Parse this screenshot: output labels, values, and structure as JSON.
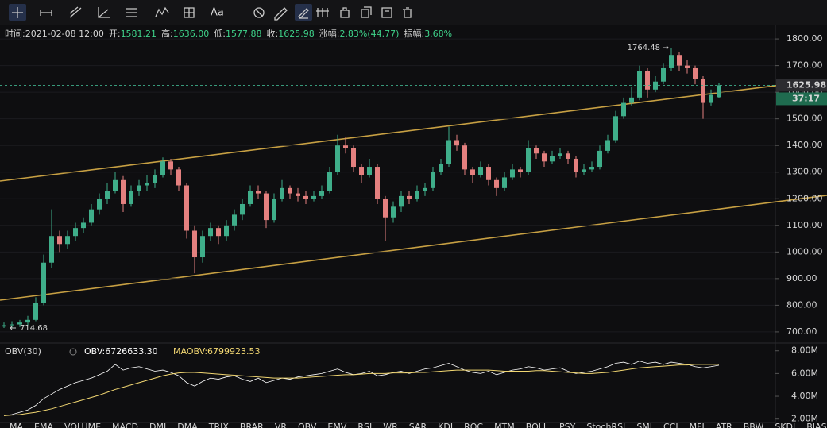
{
  "toolbar": {
    "text_tool": "Aa"
  },
  "info": [
    {
      "label": "时间:",
      "value": "2021-02-08 12:00"
    },
    {
      "label": "开:",
      "value": "1581.21"
    },
    {
      "label": "高:",
      "value": "1636.00"
    },
    {
      "label": "低:",
      "value": "1577.88"
    },
    {
      "label": "收:",
      "value": "1625.98"
    },
    {
      "label": "涨幅:",
      "value": "2.83%(44.77)"
    },
    {
      "label": "振幅:",
      "value": "3.68%"
    }
  ],
  "chart_data": [
    {
      "type": "candlestick",
      "up_color": "#3fae8a",
      "down_color": "#e4807f",
      "candles": [
        [
          720,
          735,
          714.68,
          725
        ],
        [
          725,
          740,
          715,
          728
        ],
        [
          728,
          745,
          718,
          735
        ],
        [
          735,
          760,
          725,
          745
        ],
        [
          745,
          830,
          740,
          810
        ],
        [
          810,
          990,
          800,
          960
        ],
        [
          960,
          1160,
          940,
          1060
        ],
        [
          1060,
          1080,
          1000,
          1030
        ],
        [
          1030,
          1080,
          1010,
          1060
        ],
        [
          1060,
          1110,
          1040,
          1090
        ],
        [
          1090,
          1130,
          1070,
          1110
        ],
        [
          1110,
          1180,
          1100,
          1160
        ],
        [
          1160,
          1220,
          1140,
          1200
        ],
        [
          1200,
          1260,
          1180,
          1230
        ],
        [
          1230,
          1300,
          1220,
          1270
        ],
        [
          1270,
          1285,
          1150,
          1180
        ],
        [
          1180,
          1250,
          1170,
          1230
        ],
        [
          1230,
          1270,
          1210,
          1250
        ],
        [
          1250,
          1290,
          1230,
          1260
        ],
        [
          1260,
          1310,
          1240,
          1290
        ],
        [
          1290,
          1355,
          1280,
          1340
        ],
        [
          1340,
          1350,
          1290,
          1310
        ],
        [
          1310,
          1320,
          1230,
          1250
        ],
        [
          1250,
          1260,
          1050,
          1080
        ],
        [
          1080,
          1100,
          920,
          980
        ],
        [
          980,
          1080,
          960,
          1060
        ],
        [
          1060,
          1110,
          1040,
          1090
        ],
        [
          1090,
          1100,
          1030,
          1060
        ],
        [
          1060,
          1120,
          1040,
          1100
        ],
        [
          1100,
          1160,
          1080,
          1140
        ],
        [
          1140,
          1200,
          1120,
          1180
        ],
        [
          1180,
          1250,
          1170,
          1230
        ],
        [
          1230,
          1250,
          1200,
          1220
        ],
        [
          1220,
          1230,
          1090,
          1120
        ],
        [
          1120,
          1220,
          1110,
          1200
        ],
        [
          1200,
          1270,
          1190,
          1240
        ],
        [
          1240,
          1250,
          1200,
          1220
        ],
        [
          1220,
          1240,
          1190,
          1210
        ],
        [
          1210,
          1230,
          1180,
          1200
        ],
        [
          1200,
          1230,
          1190,
          1210
        ],
        [
          1210,
          1250,
          1200,
          1230
        ],
        [
          1230,
          1320,
          1220,
          1300
        ],
        [
          1300,
          1440,
          1290,
          1400
        ],
        [
          1400,
          1430,
          1370,
          1390
        ],
        [
          1390,
          1400,
          1300,
          1320
        ],
        [
          1320,
          1330,
          1260,
          1290
        ],
        [
          1290,
          1350,
          1280,
          1320
        ],
        [
          1320,
          1330,
          1180,
          1200
        ],
        [
          1200,
          1210,
          1040,
          1130
        ],
        [
          1130,
          1190,
          1110,
          1170
        ],
        [
          1170,
          1230,
          1150,
          1210
        ],
        [
          1210,
          1230,
          1180,
          1200
        ],
        [
          1200,
          1250,
          1190,
          1230
        ],
        [
          1230,
          1260,
          1210,
          1240
        ],
        [
          1240,
          1320,
          1230,
          1300
        ],
        [
          1300,
          1350,
          1290,
          1330
        ],
        [
          1330,
          1470,
          1320,
          1420
        ],
        [
          1420,
          1440,
          1380,
          1400
        ],
        [
          1400,
          1410,
          1290,
          1310
        ],
        [
          1310,
          1320,
          1260,
          1290
        ],
        [
          1290,
          1340,
          1280,
          1320
        ],
        [
          1320,
          1330,
          1250,
          1270
        ],
        [
          1270,
          1280,
          1210,
          1240
        ],
        [
          1240,
          1300,
          1230,
          1280
        ],
        [
          1280,
          1330,
          1270,
          1310
        ],
        [
          1310,
          1320,
          1280,
          1300
        ],
        [
          1300,
          1420,
          1290,
          1390
        ],
        [
          1390,
          1400,
          1350,
          1370
        ],
        [
          1370,
          1380,
          1320,
          1340
        ],
        [
          1340,
          1380,
          1330,
          1360
        ],
        [
          1360,
          1390,
          1350,
          1370
        ],
        [
          1370,
          1380,
          1330,
          1350
        ],
        [
          1350,
          1360,
          1280,
          1300
        ],
        [
          1300,
          1330,
          1290,
          1310
        ],
        [
          1310,
          1340,
          1300,
          1320
        ],
        [
          1320,
          1400,
          1310,
          1380
        ],
        [
          1380,
          1440,
          1370,
          1420
        ],
        [
          1420,
          1530,
          1410,
          1510
        ],
        [
          1510,
          1580,
          1500,
          1560
        ],
        [
          1560,
          1620,
          1550,
          1580
        ],
        [
          1580,
          1700,
          1570,
          1680
        ],
        [
          1680,
          1690,
          1580,
          1610
        ],
        [
          1610,
          1660,
          1600,
          1640
        ],
        [
          1640,
          1710,
          1630,
          1690
        ],
        [
          1690,
          1764.48,
          1680,
          1740
        ],
        [
          1740,
          1750,
          1680,
          1700
        ],
        [
          1700,
          1720,
          1670,
          1690
        ],
        [
          1690,
          1700,
          1630,
          1650
        ],
        [
          1650,
          1660,
          1500,
          1560
        ],
        [
          1560,
          1610,
          1550,
          1590
        ],
        [
          1581.21,
          1636.0,
          1577.88,
          1625.98
        ]
      ],
      "last_price": 1625.98,
      "countdown": "37:17",
      "ylim": [
        658,
        1842
      ],
      "yticks": [
        {
          "value": 700,
          "label": "700.00"
        },
        {
          "value": 800,
          "label": "800.00"
        },
        {
          "value": 900,
          "label": "900.00"
        },
        {
          "value": 1000,
          "label": "1000.00"
        },
        {
          "value": 1100,
          "label": "1100.00"
        },
        {
          "value": 1200,
          "label": "1200.00"
        },
        {
          "value": 1300,
          "label": "1300.00"
        },
        {
          "value": 1400,
          "label": "1400.00"
        },
        {
          "value": 1500,
          "label": "1500.00"
        },
        {
          "value": 1600,
          "label": "1600.00"
        },
        {
          "value": 1700,
          "label": "1700.00"
        },
        {
          "value": 1800,
          "label": "1800.00"
        }
      ]
    },
    {
      "type": "line",
      "title": "OBV(30)",
      "series": [
        {
          "legend_text": "OBV:6726633.30",
          "color": "#ffffff",
          "values": [
            2.3,
            2.4,
            2.6,
            2.8,
            3.2,
            3.8,
            4.2,
            4.6,
            4.9,
            5.2,
            5.4,
            5.6,
            5.9,
            6.2,
            6.8,
            6.3,
            6.5,
            6.6,
            6.4,
            6.2,
            6.3,
            6.1,
            5.8,
            5.2,
            4.9,
            5.3,
            5.6,
            5.5,
            5.7,
            5.8,
            5.5,
            5.3,
            5.6,
            5.2,
            5.4,
            5.6,
            5.5,
            5.7,
            5.8,
            5.9,
            6.0,
            6.2,
            6.4,
            6.1,
            5.9,
            6.0,
            6.2,
            5.8,
            5.9,
            6.1,
            6.2,
            6.0,
            6.2,
            6.4,
            6.5,
            6.7,
            6.9,
            6.6,
            6.3,
            6.1,
            6.0,
            6.2,
            5.9,
            6.1,
            6.3,
            6.4,
            6.6,
            6.5,
            6.3,
            6.4,
            6.5,
            6.2,
            6.0,
            6.1,
            6.2,
            6.4,
            6.6,
            6.9,
            7.0,
            6.8,
            7.1,
            6.9,
            7.0,
            6.8,
            7.0,
            6.9,
            6.8,
            6.6,
            6.5,
            6.6,
            6.7266333
          ]
        },
        {
          "legend_text": "MAOBV:6799923.53",
          "color": "#f2d772",
          "values": [
            2.3,
            2.35,
            2.4,
            2.5,
            2.6,
            2.75,
            2.9,
            3.1,
            3.3,
            3.5,
            3.7,
            3.9,
            4.1,
            4.35,
            4.6,
            4.8,
            5.0,
            5.2,
            5.4,
            5.6,
            5.8,
            5.95,
            6.05,
            6.1,
            6.1,
            6.05,
            6.0,
            5.95,
            5.9,
            5.85,
            5.8,
            5.75,
            5.7,
            5.65,
            5.6,
            5.6,
            5.6,
            5.6,
            5.65,
            5.7,
            5.75,
            5.8,
            5.85,
            5.9,
            5.9,
            5.95,
            6.0,
            6.0,
            6.0,
            6.05,
            6.05,
            6.05,
            6.1,
            6.1,
            6.15,
            6.2,
            6.25,
            6.3,
            6.3,
            6.3,
            6.3,
            6.3,
            6.25,
            6.2,
            6.2,
            6.2,
            6.2,
            6.25,
            6.25,
            6.2,
            6.15,
            6.1,
            6.05,
            6.0,
            6.0,
            6.05,
            6.1,
            6.2,
            6.3,
            6.4,
            6.5,
            6.55,
            6.6,
            6.65,
            6.7,
            6.75,
            6.75,
            6.8,
            6.8,
            6.8,
            6.7999235
          ]
        }
      ],
      "ylim": [
        1.7,
        8.4
      ],
      "yticks": [
        {
          "value": 2,
          "label": "2.00M"
        },
        {
          "value": 4,
          "label": "4.00M"
        },
        {
          "value": 6,
          "label": "6.00M"
        },
        {
          "value": 8,
          "label": "8.00M"
        }
      ]
    }
  ],
  "tabs": [
    "MA",
    "EMA",
    "VOLUME",
    "MACD",
    "DMI",
    "DMA",
    "TRIX",
    "BRAR",
    "VR",
    "OBV",
    "EMV",
    "RSI",
    "WR",
    "SAR",
    "KDJ",
    "ROC",
    "MTM",
    "BOLL",
    "PSY",
    "StochRSI",
    "SMI",
    "CCI",
    "MFI",
    "ATR",
    "BBW",
    "SKDJ",
    "BIAS"
  ],
  "active_tab": 9
}
